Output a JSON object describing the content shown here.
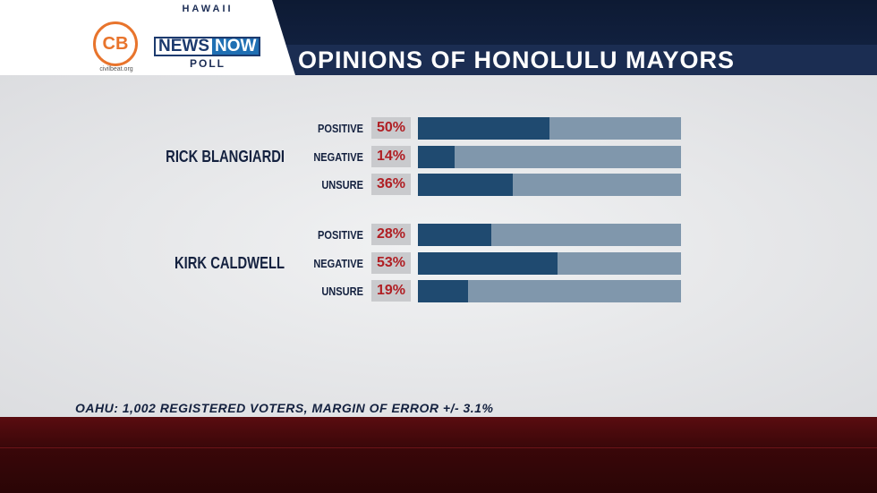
{
  "header": {
    "cb_logo_text": "CB",
    "cb_url": "civilbeat.org",
    "hnn_top": "HAWAII",
    "hnn_news": "NEWS",
    "hnn_now": "NOW",
    "hnn_bottom": "POLL",
    "title": "OPINIONS OF HONOLULU MAYORS"
  },
  "colors": {
    "bar_fill": "#1f4a70",
    "bar_track": "#8097ac",
    "percent_text": "#b01e23",
    "header_bg": "#142446",
    "footer_bg": "#3a0709"
  },
  "chart_data": {
    "type": "bar",
    "orientation": "horizontal-stacked-to-100",
    "categories": [
      "POSITIVE",
      "NEGATIVE",
      "UNSURE"
    ],
    "groups": [
      {
        "name": "RICK BLANGIARDI",
        "rows": [
          {
            "label": "POSITIVE",
            "value": 50,
            "text": "50%"
          },
          {
            "label": "NEGATIVE",
            "value": 14,
            "text": "14%"
          },
          {
            "label": "UNSURE",
            "value": 36,
            "text": "36%"
          }
        ]
      },
      {
        "name": "KIRK CALDWELL",
        "rows": [
          {
            "label": "POSITIVE",
            "value": 28,
            "text": "28%"
          },
          {
            "label": "NEGATIVE",
            "value": 53,
            "text": "53%"
          },
          {
            "label": "UNSURE",
            "value": 19,
            "text": "19%"
          }
        ]
      }
    ],
    "xlim": [
      0,
      100
    ],
    "grid": false
  },
  "footnote": "OAHU: 1,002 REGISTERED VOTERS, MARGIN OF ERROR +/- 3.1%"
}
